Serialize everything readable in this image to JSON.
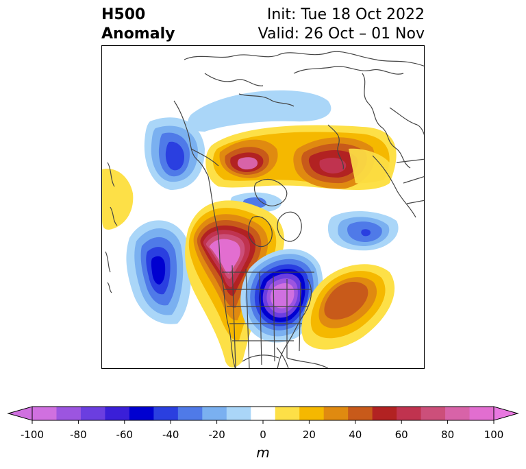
{
  "title": {
    "left_line1": "H500",
    "left_line2": "Anomaly",
    "right_line1": "Init: Tue 18 Oct 2022",
    "right_line2": "Valid: 26 Oct – 01 Nov"
  },
  "colorbar": {
    "unit": "m",
    "ticks": [
      "-100",
      "-80",
      "-60",
      "-40",
      "-20",
      "0",
      "20",
      "40",
      "60",
      "80",
      "100"
    ],
    "levels": [
      -100,
      -90,
      -80,
      -70,
      -60,
      -50,
      -40,
      -30,
      -20,
      -10,
      10,
      20,
      30,
      40,
      50,
      60,
      70,
      80,
      90,
      100
    ],
    "colors": [
      "#d070e0",
      "#9c55e0",
      "#6b3ee0",
      "#3a1fd8",
      "#0000d0",
      "#2a3fe0",
      "#4f7ae8",
      "#7ab0f0",
      "#aad6f8",
      "#ffffff",
      "#fde047",
      "#f5b800",
      "#e08a10",
      "#c85a1a",
      "#b22222",
      "#c0334f",
      "#cc4f7a",
      "#d863a8",
      "#e26ed0"
    ],
    "extend_low_color": "#d070e0",
    "extend_high_color": "#e878e0"
  },
  "map": {
    "anomaly_centers": [
      {
        "name": "arctic-siberia-ridge-west",
        "value": 70
      },
      {
        "name": "arctic-siberia-ridge-east",
        "value": 60
      },
      {
        "name": "western-north-america-ridge",
        "value": 100
      },
      {
        "name": "eastern-north-america-trough",
        "value": -100
      },
      {
        "name": "north-pacific-trough",
        "value": -60
      },
      {
        "name": "gulf-of-alaska-trough",
        "value": -50
      },
      {
        "name": "north-atlantic-ridge",
        "value": 50
      },
      {
        "name": "north-atlantic-trough",
        "value": -40
      },
      {
        "name": "polar-trough",
        "value": -30
      },
      {
        "name": "western-pacific-ridge",
        "value": 20
      }
    ]
  }
}
